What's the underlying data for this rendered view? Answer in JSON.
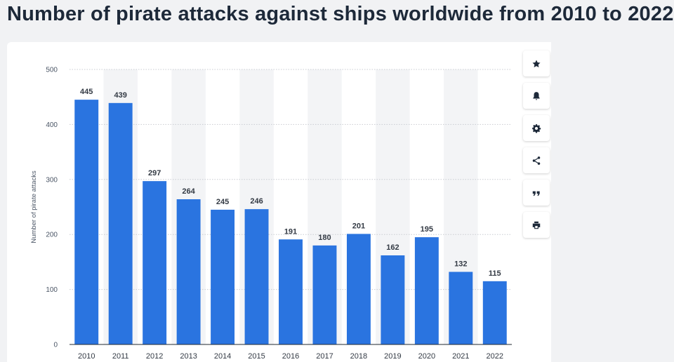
{
  "page": {
    "title": "Number of pirate attacks against ships worldwide from 2010 to 2022"
  },
  "toolbar": {
    "buttons": [
      {
        "icon": "star-icon",
        "name": "favorite-button"
      },
      {
        "icon": "bell-icon",
        "name": "notification-button"
      },
      {
        "icon": "gear-icon",
        "name": "settings-button"
      },
      {
        "icon": "share-icon",
        "name": "share-button"
      },
      {
        "icon": "quote-icon",
        "name": "citation-button"
      },
      {
        "icon": "print-icon",
        "name": "print-button"
      }
    ]
  },
  "colors": {
    "bar": "#2a74e0",
    "grid": "#c9ccd1",
    "band": "#f3f4f6",
    "text": "#4a5565",
    "label": "#333a44"
  },
  "chart_data": {
    "type": "bar",
    "categories": [
      "2010",
      "2011",
      "2012",
      "2013",
      "2014",
      "2015",
      "2016",
      "2017",
      "2018",
      "2019",
      "2020",
      "2021",
      "2022"
    ],
    "values": [
      445,
      439,
      297,
      264,
      245,
      246,
      191,
      180,
      201,
      162,
      195,
      132,
      115
    ],
    "title": "Number of pirate attacks against ships worldwide from 2010 to 2022",
    "xlabel": "",
    "ylabel": "Number of pirate attacks",
    "ylim": [
      0,
      500
    ],
    "yticks": [
      0,
      100,
      200,
      300,
      400,
      500
    ],
    "grid": true,
    "legend": "none"
  }
}
